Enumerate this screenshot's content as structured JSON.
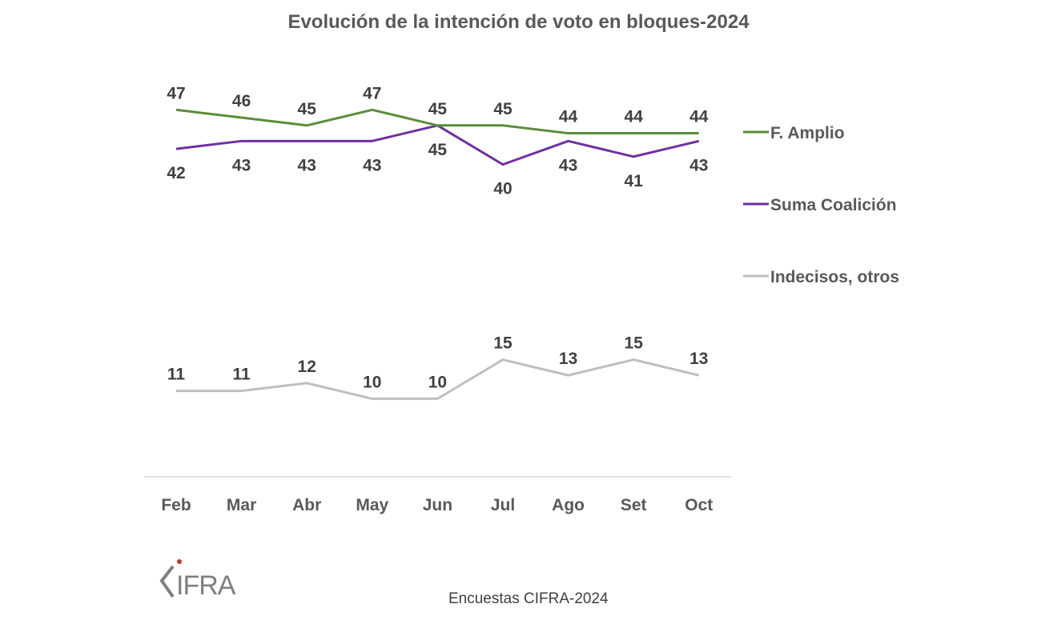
{
  "chart_data": {
    "type": "line",
    "title": "Evolución de la intención de voto en bloques-2024",
    "categories": [
      "Feb",
      "Mar",
      "Abr",
      "May",
      "Jun",
      "Jul",
      "Ago",
      "Set",
      "Oct"
    ],
    "series": [
      {
        "name": "F. Amplio",
        "color": "#5b8c3a",
        "values": [
          47,
          46,
          45,
          47,
          45,
          45,
          44,
          44,
          44
        ],
        "label_position": "above"
      },
      {
        "name": "Suma Coalición",
        "color": "#7030a0",
        "values": [
          42,
          43,
          43,
          43,
          45,
          40,
          43,
          41,
          43
        ],
        "label_position": "below"
      },
      {
        "name": "Indecisos, otros",
        "color": "#bfbfbf",
        "values": [
          11,
          11,
          12,
          10,
          10,
          15,
          13,
          15,
          13
        ],
        "label_position": "above"
      }
    ],
    "xlabel": "",
    "ylabel": "",
    "ylim": [
      0,
      47
    ],
    "grid": false,
    "legend_placement": "right",
    "data_labels": true
  },
  "footer": {
    "source": "Encuestas CIFRA-2024"
  },
  "logo": {
    "text": "CIFRA",
    "accent_color": "#c0392b"
  }
}
